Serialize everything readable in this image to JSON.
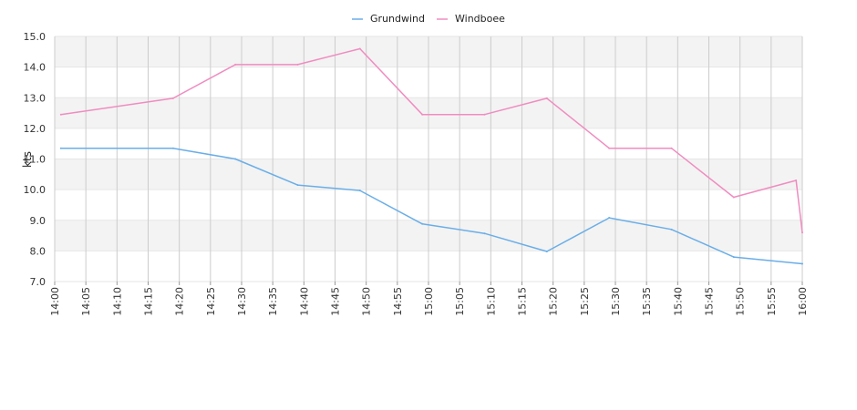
{
  "chart_data": {
    "type": "line",
    "title": "",
    "xlabel": "",
    "ylabel": "kts",
    "ylim": [
      7.0,
      15.0
    ],
    "xlim": [
      "14:00",
      "16:00"
    ],
    "y_ticks": [
      "7.0",
      "8.0",
      "9.0",
      "10.0",
      "11.0",
      "12.0",
      "13.0",
      "14.0",
      "15.0"
    ],
    "x_ticks": [
      "14:00",
      "14:05",
      "14:10",
      "14:15",
      "14:20",
      "14:25",
      "14:30",
      "14:35",
      "14:40",
      "14:45",
      "14:50",
      "14:55",
      "15:00",
      "15:05",
      "15:10",
      "15:15",
      "15:20",
      "15:25",
      "15:30",
      "15:35",
      "15:40",
      "15:45",
      "15:50",
      "15:55",
      "16:00"
    ],
    "grid": true,
    "legend_position": "top-center",
    "series": [
      {
        "name": "Grundwind",
        "color": "#6aaee8",
        "x": [
          "14:01",
          "14:19",
          "14:29",
          "14:39",
          "14:49",
          "14:59",
          "15:09",
          "15:19",
          "15:29",
          "15:39",
          "15:49",
          "16:00"
        ],
        "y": [
          11.35,
          11.35,
          11.0,
          10.15,
          9.97,
          8.88,
          8.57,
          7.98,
          9.08,
          8.7,
          7.8,
          7.58
        ]
      },
      {
        "name": "Windboee",
        "color": "#f08cc0",
        "x": [
          "14:01",
          "14:19",
          "14:29",
          "14:39",
          "14:49",
          "14:59",
          "15:09",
          "15:19",
          "15:29",
          "15:39",
          "15:49",
          "15:59",
          "16:00"
        ],
        "y": [
          12.45,
          12.98,
          14.08,
          14.08,
          14.6,
          12.45,
          12.45,
          12.98,
          11.35,
          11.35,
          9.75,
          10.3,
          8.6
        ]
      }
    ]
  }
}
